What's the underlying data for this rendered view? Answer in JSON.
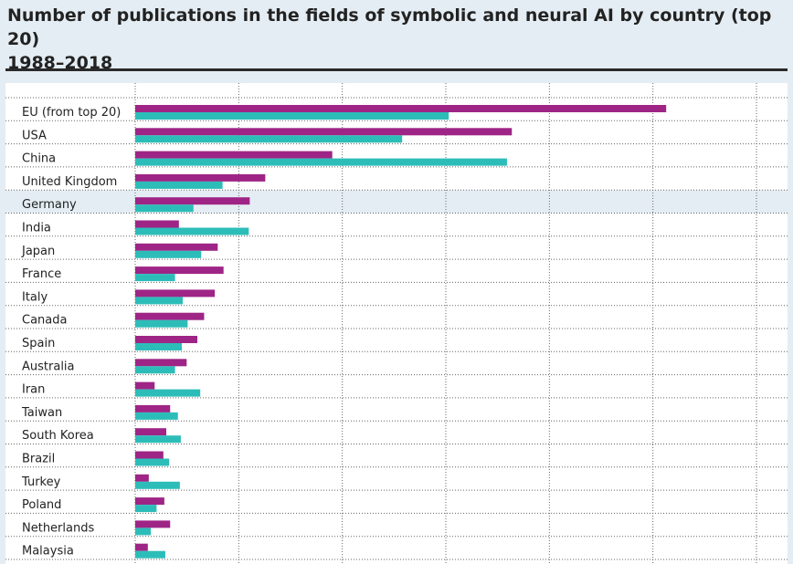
{
  "chart_data": {
    "type": "bar",
    "orientation": "horizontal",
    "title": "Number of publications in the fields of symbolic and neural AI by country (top 20)\n1988–2018",
    "categories": [
      "EU (from top 20)",
      "USA",
      "China",
      "United Kingdom",
      "Germany",
      "India",
      "Japan",
      "France",
      "Italy",
      "Canada",
      "Spain",
      "Australia",
      "Iran",
      "Taiwan",
      "South Korea",
      "Brazil",
      "Turkey",
      "Poland",
      "Netherlands",
      "Malaysia"
    ],
    "highlighted_category": "Germany",
    "series": [
      {
        "color": "#9e2586",
        "values": [
          27350,
          19400,
          10150,
          6700,
          5900,
          2250,
          4250,
          4550,
          4100,
          3550,
          3200,
          2650,
          1000,
          1800,
          1600,
          1450,
          700,
          1500,
          1800,
          650
        ]
      },
      {
        "color": "#2dbdb9",
        "values": [
          16150,
          13750,
          19150,
          4500,
          3000,
          5850,
          3400,
          2050,
          2450,
          2700,
          2400,
          2050,
          3350,
          2200,
          2350,
          1750,
          2300,
          1100,
          800,
          1550
        ]
      }
    ],
    "xlim": [
      0,
      32000
    ],
    "grid": "dotted vertical and horizontal",
    "legend": "none",
    "row_highlight_color": "#e4edf3",
    "plot_background": "#ffffff"
  }
}
